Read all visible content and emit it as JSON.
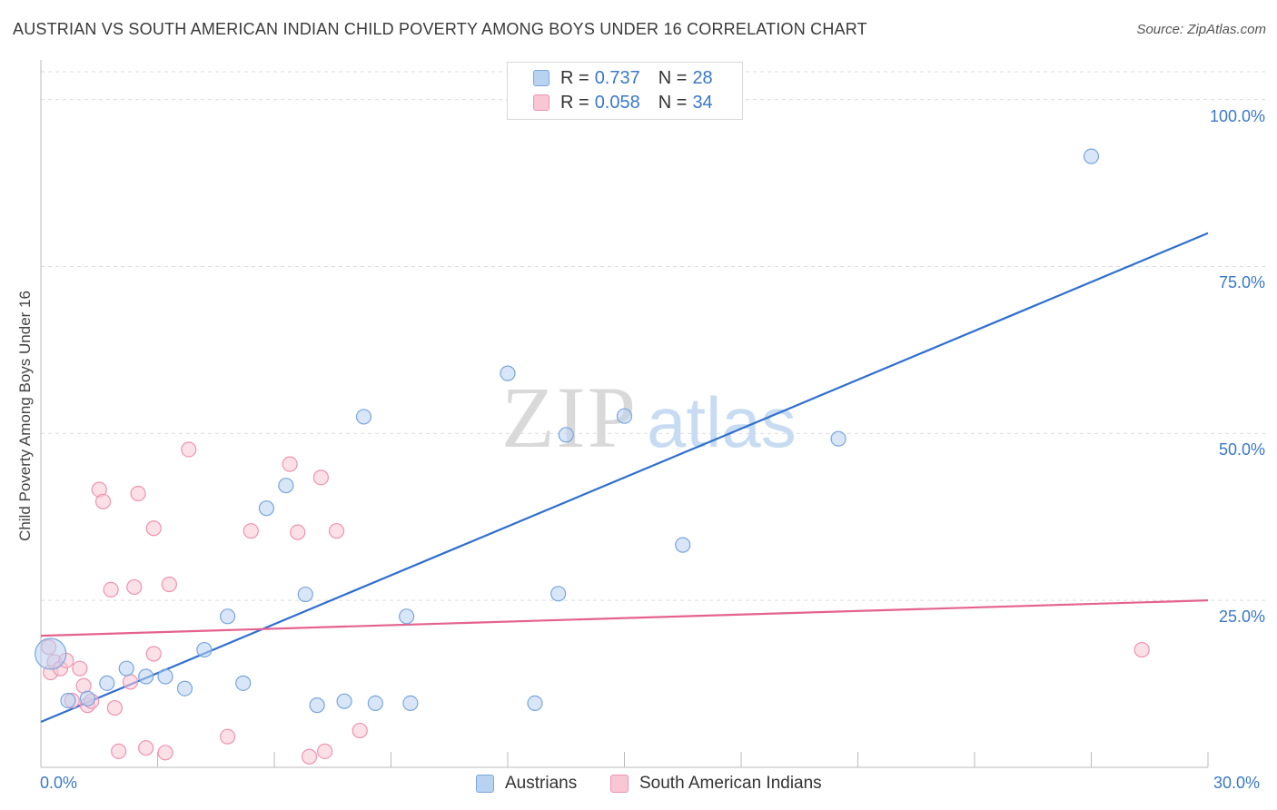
{
  "title": "AUSTRIAN VS SOUTH AMERICAN INDIAN CHILD POVERTY AMONG BOYS UNDER 16 CORRELATION CHART",
  "source": "Source: ZipAtlas.com",
  "watermark": {
    "zip": "ZIP",
    "atlas": "atlas"
  },
  "colors": {
    "blue_fill": "#b8d2f2",
    "blue_stroke": "#7aa6dc",
    "blue_line": "#2f6fcf",
    "pink_fill": "#f9c6d6",
    "pink_stroke": "#ee93b0",
    "pink_line": "#e4628e",
    "axis_text": "#3a78c9",
    "grid": "#dcdcdc"
  },
  "legend": {
    "rows": [
      {
        "r_label": "R =",
        "r_value": "0.737",
        "n_label": "N =",
        "n_value": "28"
      },
      {
        "r_label": "R =",
        "r_value": "0.058",
        "n_label": "N =",
        "n_value": "34"
      }
    ]
  },
  "bottom_legend": {
    "austrians": "Austrians",
    "south_american_indians": "South American Indians"
  },
  "chart_data": {
    "type": "scatter",
    "title": "AUSTRIAN VS SOUTH AMERICAN INDIAN CHILD POVERTY AMONG BOYS UNDER 16 CORRELATION CHART",
    "xlabel": "",
    "ylabel": "Child Poverty Among Boys Under 16",
    "xlim": [
      0,
      30
    ],
    "ylim": [
      0,
      100
    ],
    "x_tick_labels": [
      "0.0%",
      "30.0%"
    ],
    "y_tick_labels": [
      "100.0%",
      "75.0%",
      "50.0%",
      "25.0%"
    ],
    "y_ticks": [
      100,
      75,
      50,
      25
    ],
    "x_minor_ticks": [
      3,
      6,
      9,
      12,
      15,
      18,
      21,
      24,
      27,
      30
    ],
    "grid": true,
    "legend_position": "top-center",
    "series": [
      {
        "name": "Austrians",
        "color": "blue",
        "R": 0.737,
        "N": 28,
        "trend": {
          "x": [
            0,
            30
          ],
          "y": [
            6.8,
            80.0
          ]
        },
        "points": [
          [
            0.25,
            17.0
          ],
          [
            0.7,
            10.0
          ],
          [
            1.2,
            10.3
          ],
          [
            1.7,
            12.6
          ],
          [
            2.2,
            14.8
          ],
          [
            2.7,
            13.6
          ],
          [
            3.2,
            13.6
          ],
          [
            3.7,
            11.8
          ],
          [
            4.2,
            17.6
          ],
          [
            4.8,
            22.6
          ],
          [
            5.2,
            12.6
          ],
          [
            5.8,
            38.8
          ],
          [
            6.3,
            42.2
          ],
          [
            6.8,
            25.9
          ],
          [
            7.1,
            9.3
          ],
          [
            7.8,
            9.9
          ],
          [
            8.3,
            52.5
          ],
          [
            8.6,
            9.6
          ],
          [
            9.4,
            22.6
          ],
          [
            9.5,
            9.6
          ],
          [
            12.0,
            59.0
          ],
          [
            12.7,
            9.6
          ],
          [
            13.3,
            26.0
          ],
          [
            13.5,
            49.8
          ],
          [
            15.0,
            52.6
          ],
          [
            16.5,
            33.3
          ],
          [
            20.5,
            49.2
          ],
          [
            27.0,
            91.5
          ]
        ]
      },
      {
        "name": "South American Indians",
        "color": "pink",
        "R": 0.058,
        "N": 34,
        "trend": {
          "x": [
            0,
            30
          ],
          "y": [
            19.7,
            25.0
          ]
        },
        "points": [
          [
            0.2,
            18.0
          ],
          [
            0.25,
            14.2
          ],
          [
            0.35,
            15.8
          ],
          [
            0.5,
            14.8
          ],
          [
            0.65,
            16.0
          ],
          [
            0.8,
            10.0
          ],
          [
            1.0,
            14.8
          ],
          [
            1.1,
            12.2
          ],
          [
            1.2,
            9.3
          ],
          [
            1.3,
            9.9
          ],
          [
            1.5,
            41.6
          ],
          [
            1.6,
            39.8
          ],
          [
            1.8,
            26.6
          ],
          [
            1.9,
            8.9
          ],
          [
            2.0,
            2.4
          ],
          [
            2.3,
            12.8
          ],
          [
            2.4,
            27.0
          ],
          [
            2.5,
            41.0
          ],
          [
            2.7,
            2.9
          ],
          [
            2.9,
            17.0
          ],
          [
            2.9,
            35.8
          ],
          [
            3.2,
            2.2
          ],
          [
            3.3,
            27.4
          ],
          [
            3.8,
            47.6
          ],
          [
            4.8,
            4.6
          ],
          [
            5.4,
            35.4
          ],
          [
            6.4,
            45.4
          ],
          [
            6.6,
            35.2
          ],
          [
            6.9,
            1.6
          ],
          [
            7.2,
            43.4
          ],
          [
            7.3,
            2.4
          ],
          [
            7.6,
            35.4
          ],
          [
            8.2,
            5.5
          ],
          [
            28.3,
            17.6
          ]
        ]
      }
    ]
  }
}
